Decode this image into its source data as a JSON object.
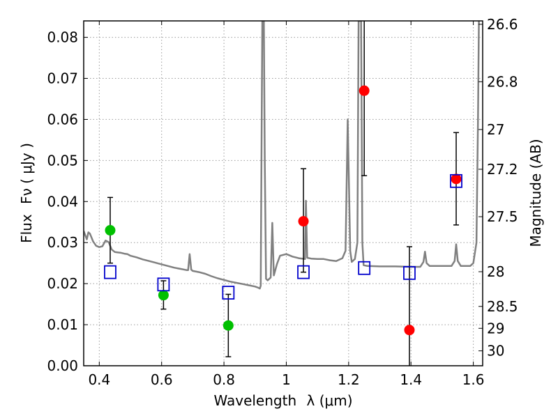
{
  "chart_data": {
    "type": "scatter",
    "xlabel_prefix": "Wavelength",
    "xlabel_math": "λ (μm)",
    "ylabel_prefix": "Flux",
    "ylabel_math": "Fν ( μJy )",
    "y2label": "Magnitude (AB)",
    "xlim": [
      0.35,
      1.63
    ],
    "ylim": [
      0.0,
      0.084
    ],
    "grid": true,
    "x_ticks": [
      0.4,
      0.6,
      0.8,
      1.0,
      1.2,
      1.4,
      1.6
    ],
    "x_tick_labels": [
      "0.4",
      "0.6",
      "0.8",
      "1",
      "1.2",
      "1.4",
      "1.6"
    ],
    "y_ticks": [
      0.0,
      0.01,
      0.02,
      0.03,
      0.04,
      0.05,
      0.06,
      0.07,
      0.08
    ],
    "y_tick_labels": [
      "0.00",
      "0.01",
      "0.02",
      "0.03",
      "0.04",
      "0.05",
      "0.06",
      "0.07",
      "0.08"
    ],
    "mag_ticks": [
      26.6,
      26.8,
      27.0,
      27.2,
      27.5,
      28.0,
      28.5,
      29.0,
      30.0
    ],
    "mag_tick_labels": [
      "26.6",
      "26.8",
      "27",
      "27.2",
      "27.5",
      "28",
      "28.5",
      "29",
      "30"
    ],
    "colors": {
      "model": "#808080",
      "green": "#00c000",
      "red": "#ff0000",
      "model_box": "#0000cc",
      "errorbar": "#000000",
      "grid": "#9a9a9a"
    },
    "series": [
      {
        "color_key": "green",
        "marker": "circle",
        "points": [
          {
            "x": 0.435,
            "y": 0.033,
            "ylo": 0.025,
            "yhi": 0.041
          },
          {
            "x": 0.606,
            "y": 0.0172,
            "ylo": 0.0138,
            "yhi": 0.0207
          },
          {
            "x": 0.814,
            "y": 0.0098,
            "ylo": 0.0022,
            "yhi": 0.0174
          }
        ]
      },
      {
        "color_key": "red",
        "marker": "circle",
        "points": [
          {
            "x": 1.055,
            "y": 0.0352,
            "ylo": 0.0228,
            "yhi": 0.048
          },
          {
            "x": 1.25,
            "y": 0.067,
            "ylo": 0.0463,
            "yhi": 0.084
          },
          {
            "x": 1.395,
            "y": 0.0087,
            "ylo": 0.0,
            "yhi": 0.029
          },
          {
            "x": 1.545,
            "y": 0.0455,
            "ylo": 0.0343,
            "yhi": 0.0568
          }
        ]
      },
      {
        "color_key": "model_box",
        "marker": "open-square",
        "points": [
          {
            "x": 0.435,
            "y": 0.0228
          },
          {
            "x": 0.606,
            "y": 0.0198
          },
          {
            "x": 0.814,
            "y": 0.0178
          },
          {
            "x": 1.055,
            "y": 0.0228
          },
          {
            "x": 1.25,
            "y": 0.0238
          },
          {
            "x": 1.395,
            "y": 0.0226
          },
          {
            "x": 1.545,
            "y": 0.045
          }
        ]
      }
    ],
    "model_spectrum": [
      [
        0.35,
        0.0328
      ],
      [
        0.355,
        0.0318
      ],
      [
        0.36,
        0.0308
      ],
      [
        0.365,
        0.0325
      ],
      [
        0.37,
        0.0322
      ],
      [
        0.38,
        0.0303
      ],
      [
        0.39,
        0.0292
      ],
      [
        0.4,
        0.0289
      ],
      [
        0.41,
        0.0291
      ],
      [
        0.42,
        0.0305
      ],
      [
        0.43,
        0.0301
      ],
      [
        0.44,
        0.0283
      ],
      [
        0.45,
        0.0277
      ],
      [
        0.46,
        0.0276
      ],
      [
        0.47,
        0.0275
      ],
      [
        0.48,
        0.0273
      ],
      [
        0.49,
        0.0272
      ],
      [
        0.5,
        0.0268
      ],
      [
        0.52,
        0.0264
      ],
      [
        0.54,
        0.0259
      ],
      [
        0.56,
        0.0255
      ],
      [
        0.58,
        0.0251
      ],
      [
        0.6,
        0.0247
      ],
      [
        0.62,
        0.0243
      ],
      [
        0.64,
        0.0239
      ],
      [
        0.66,
        0.0236
      ],
      [
        0.68,
        0.0233
      ],
      [
        0.685,
        0.0233
      ],
      [
        0.69,
        0.0272
      ],
      [
        0.695,
        0.0234
      ],
      [
        0.7,
        0.0231
      ],
      [
        0.72,
        0.0228
      ],
      [
        0.74,
        0.0224
      ],
      [
        0.76,
        0.0218
      ],
      [
        0.78,
        0.0213
      ],
      [
        0.8,
        0.0209
      ],
      [
        0.82,
        0.0205
      ],
      [
        0.84,
        0.0202
      ],
      [
        0.86,
        0.0199
      ],
      [
        0.88,
        0.0196
      ],
      [
        0.9,
        0.0193
      ],
      [
        0.91,
        0.019
      ],
      [
        0.915,
        0.0188
      ],
      [
        0.918,
        0.0195
      ],
      [
        0.921,
        0.06
      ],
      [
        0.923,
        0.084
      ],
      [
        0.928,
        0.084
      ],
      [
        0.931,
        0.05
      ],
      [
        0.935,
        0.0212
      ],
      [
        0.94,
        0.0208
      ],
      [
        0.95,
        0.0215
      ],
      [
        0.955,
        0.0348
      ],
      [
        0.96,
        0.022
      ],
      [
        0.97,
        0.0248
      ],
      [
        0.98,
        0.0268
      ],
      [
        1.0,
        0.0272
      ],
      [
        1.02,
        0.0266
      ],
      [
        1.04,
        0.0262
      ],
      [
        1.06,
        0.026
      ],
      [
        1.063,
        0.0402
      ],
      [
        1.067,
        0.0263
      ],
      [
        1.08,
        0.0261
      ],
      [
        1.1,
        0.026
      ],
      [
        1.12,
        0.026
      ],
      [
        1.14,
        0.0257
      ],
      [
        1.16,
        0.0255
      ],
      [
        1.18,
        0.0262
      ],
      [
        1.19,
        0.028
      ],
      [
        1.197,
        0.06
      ],
      [
        1.205,
        0.028
      ],
      [
        1.21,
        0.0253
      ],
      [
        1.22,
        0.026
      ],
      [
        1.228,
        0.03
      ],
      [
        1.232,
        0.084
      ],
      [
        1.24,
        0.084
      ],
      [
        1.244,
        0.03
      ],
      [
        1.248,
        0.0245
      ],
      [
        1.26,
        0.0243
      ],
      [
        1.3,
        0.0242
      ],
      [
        1.35,
        0.0242
      ],
      [
        1.4,
        0.0241
      ],
      [
        1.43,
        0.0241
      ],
      [
        1.44,
        0.0253
      ],
      [
        1.445,
        0.0278
      ],
      [
        1.45,
        0.025
      ],
      [
        1.46,
        0.0243
      ],
      [
        1.5,
        0.0243
      ],
      [
        1.53,
        0.0243
      ],
      [
        1.54,
        0.0255
      ],
      [
        1.545,
        0.0296
      ],
      [
        1.55,
        0.0255
      ],
      [
        1.56,
        0.0243
      ],
      [
        1.59,
        0.0243
      ],
      [
        1.6,
        0.025
      ],
      [
        1.61,
        0.03
      ],
      [
        1.615,
        0.06
      ],
      [
        1.618,
        0.084
      ]
    ]
  }
}
